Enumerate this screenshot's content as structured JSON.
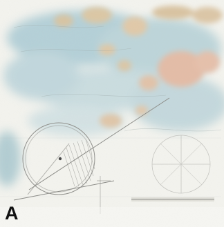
{
  "figure": {
    "panel_label": "A"
  },
  "colors": {
    "paper": "#f4f4ef",
    "sea_blue": "#9fc3cf",
    "land_tan": "#dcc7a4",
    "land_pink": "#e4bca6",
    "pencil": "#8e8e8a"
  }
}
